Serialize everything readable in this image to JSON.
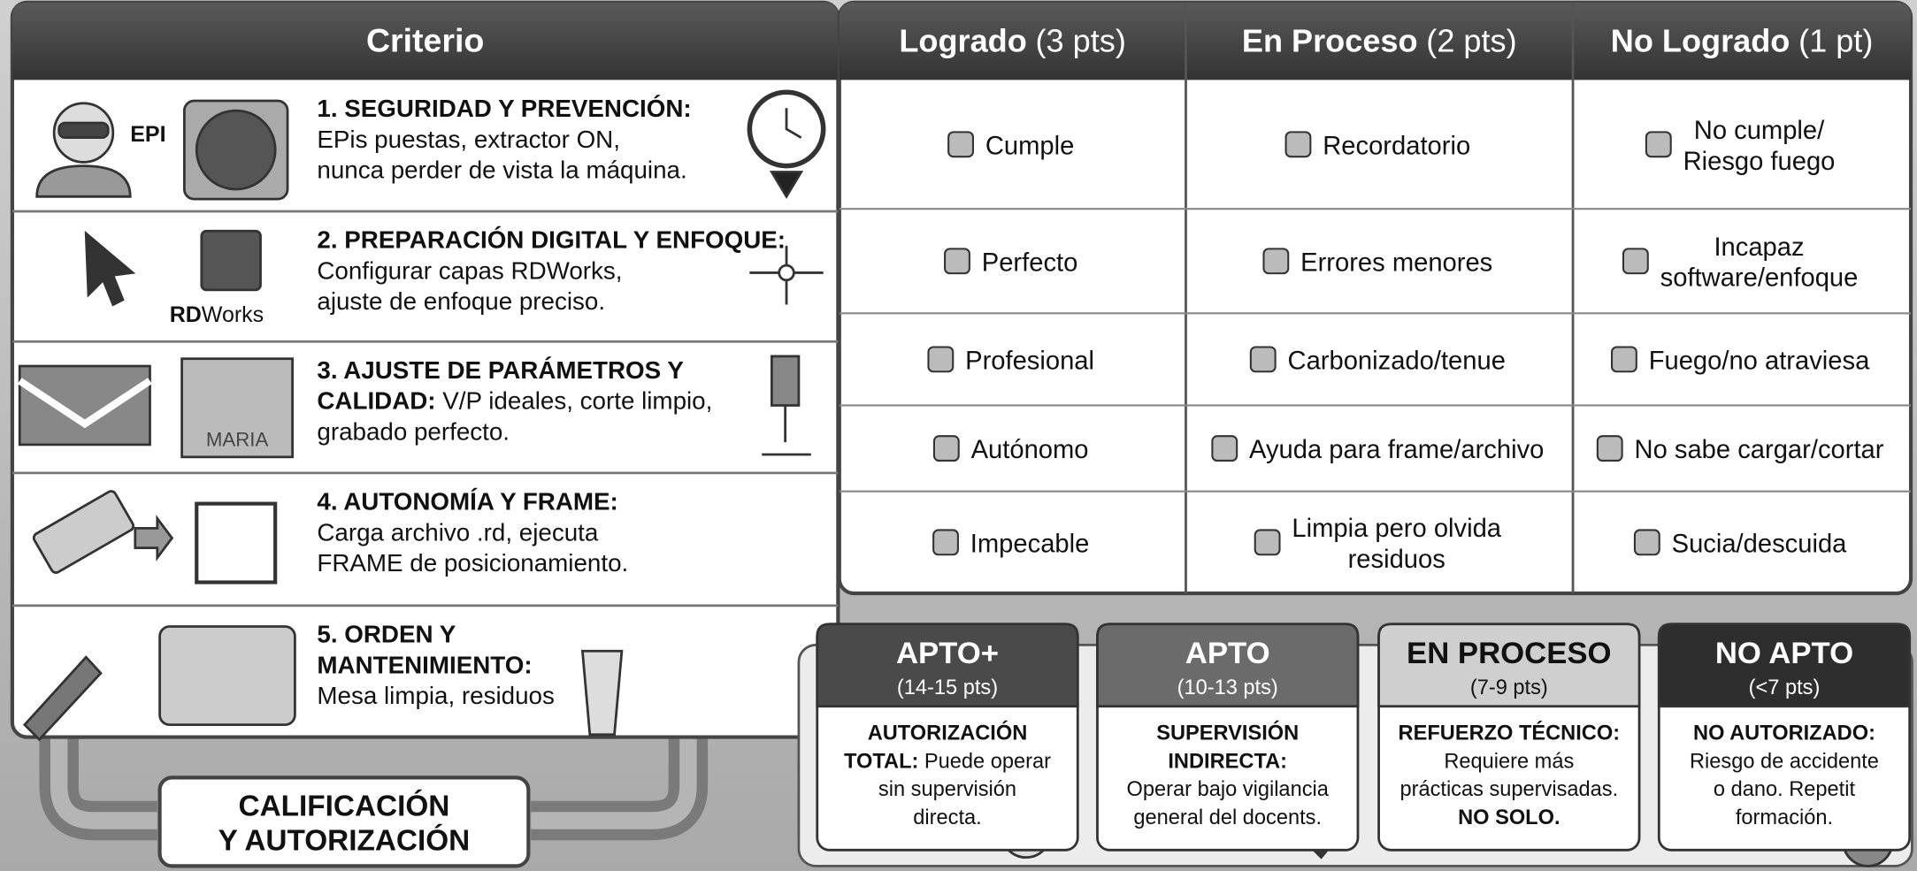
{
  "header": {
    "criterion": "Criterio",
    "levels": [
      {
        "name": "Logrado",
        "points": "(3 pts)"
      },
      {
        "name": "En Proceso",
        "points": "(2 pts)"
      },
      {
        "name": "No Logrado",
        "points": "(1 pt)"
      }
    ]
  },
  "criteria": [
    {
      "icons": [
        "EPI"
      ],
      "lines": [
        {
          "bold": "1. SEGURIDAD Y PREVENCIÓN:"
        },
        {
          "text": "EPis puestas, extractor ON,"
        },
        {
          "text": "nunca perder de vista la máquina."
        }
      ]
    },
    {
      "icons": [
        "RD",
        "Works"
      ],
      "lines": [
        {
          "bold": "2. PREPARACIÓN DIGITAL Y ENFOQUE:"
        },
        {
          "text": "Configurar capas RDWorks,"
        },
        {
          "text": "ajuste de enfoque preciso."
        }
      ]
    },
    {
      "icons": [
        "MARIA"
      ],
      "lines": [
        {
          "bold": "3. AJUSTE DE PARÁMETROS Y"
        },
        {
          "bold": "CALIDAD:",
          "text": " V/P ideales, corte limpio,"
        },
        {
          "text": "grabado perfecto."
        }
      ]
    },
    {
      "lines": [
        {
          "bold": "4. AUTONOMÍA Y FRAME:"
        },
        {
          "text": "Carga archivo .rd, ejecuta"
        },
        {
          "text": "FRAME de posicionamiento."
        }
      ]
    },
    {
      "lines": [
        {
          "bold": "5. ORDEN Y"
        },
        {
          "bold": "MANTENIMIENTO:"
        },
        {
          "text": "Mesa limpia, residuos"
        }
      ]
    }
  ],
  "rubric": [
    [
      [
        "Cumple"
      ],
      [
        "Recordatorio"
      ],
      [
        "No cumple/",
        "Riesgo fuego"
      ]
    ],
    [
      [
        "Perfecto"
      ],
      [
        "Errores menores"
      ],
      [
        "Incapaz",
        "software/enfoque"
      ]
    ],
    [
      [
        "Profesional"
      ],
      [
        "Carbonizado/tenue"
      ],
      [
        "Fuego/no atraviesa"
      ]
    ],
    [
      [
        "Autónomo"
      ],
      [
        "Ayuda para frame/archivo"
      ],
      [
        "No sabe cargar/cortar"
      ]
    ],
    [
      [
        "Impecable"
      ],
      [
        "Limpia pero olvida",
        "residuos"
      ],
      [
        "Sucia/descuida"
      ]
    ]
  ],
  "summary": {
    "title": [
      "CALIFICACIÓN",
      "Y AUTORIZACIÓN"
    ]
  },
  "results": [
    {
      "name": "APTO+",
      "range": "(14-15 pts)",
      "lines": [
        {
          "bold": "AUTORIZACIÓN"
        },
        {
          "bold": "TOTAL:",
          "text": " Puede operar"
        },
        {
          "text": "sin supervisión"
        },
        {
          "text": "directa."
        }
      ]
    },
    {
      "name": "APTO",
      "range": "(10-13 pts)",
      "lines": [
        {
          "bold": "SUPERVISIÓN"
        },
        {
          "bold": "INDIRECTA:"
        },
        {
          "text": "Operar bajo vigilancia"
        },
        {
          "text": "general del docents."
        }
      ]
    },
    {
      "name": "EN PROCESO",
      "range": "(7-9 pts)",
      "lines": [
        {
          "bold": "REFUERZO TÉCNICO:"
        },
        {
          "text": "Requiere más"
        },
        {
          "text": "prácticas supervisadas."
        },
        {
          "bold": "NO SOLO."
        }
      ]
    },
    {
      "name": "NO APTO",
      "range": "(<7 pts)",
      "lines": [
        {
          "bold": "NO AUTORIZADO:"
        },
        {
          "text": "Riesgo de accidente"
        },
        {
          "text": "o dano. Repetit"
        },
        {
          "text": "formación."
        }
      ]
    }
  ]
}
